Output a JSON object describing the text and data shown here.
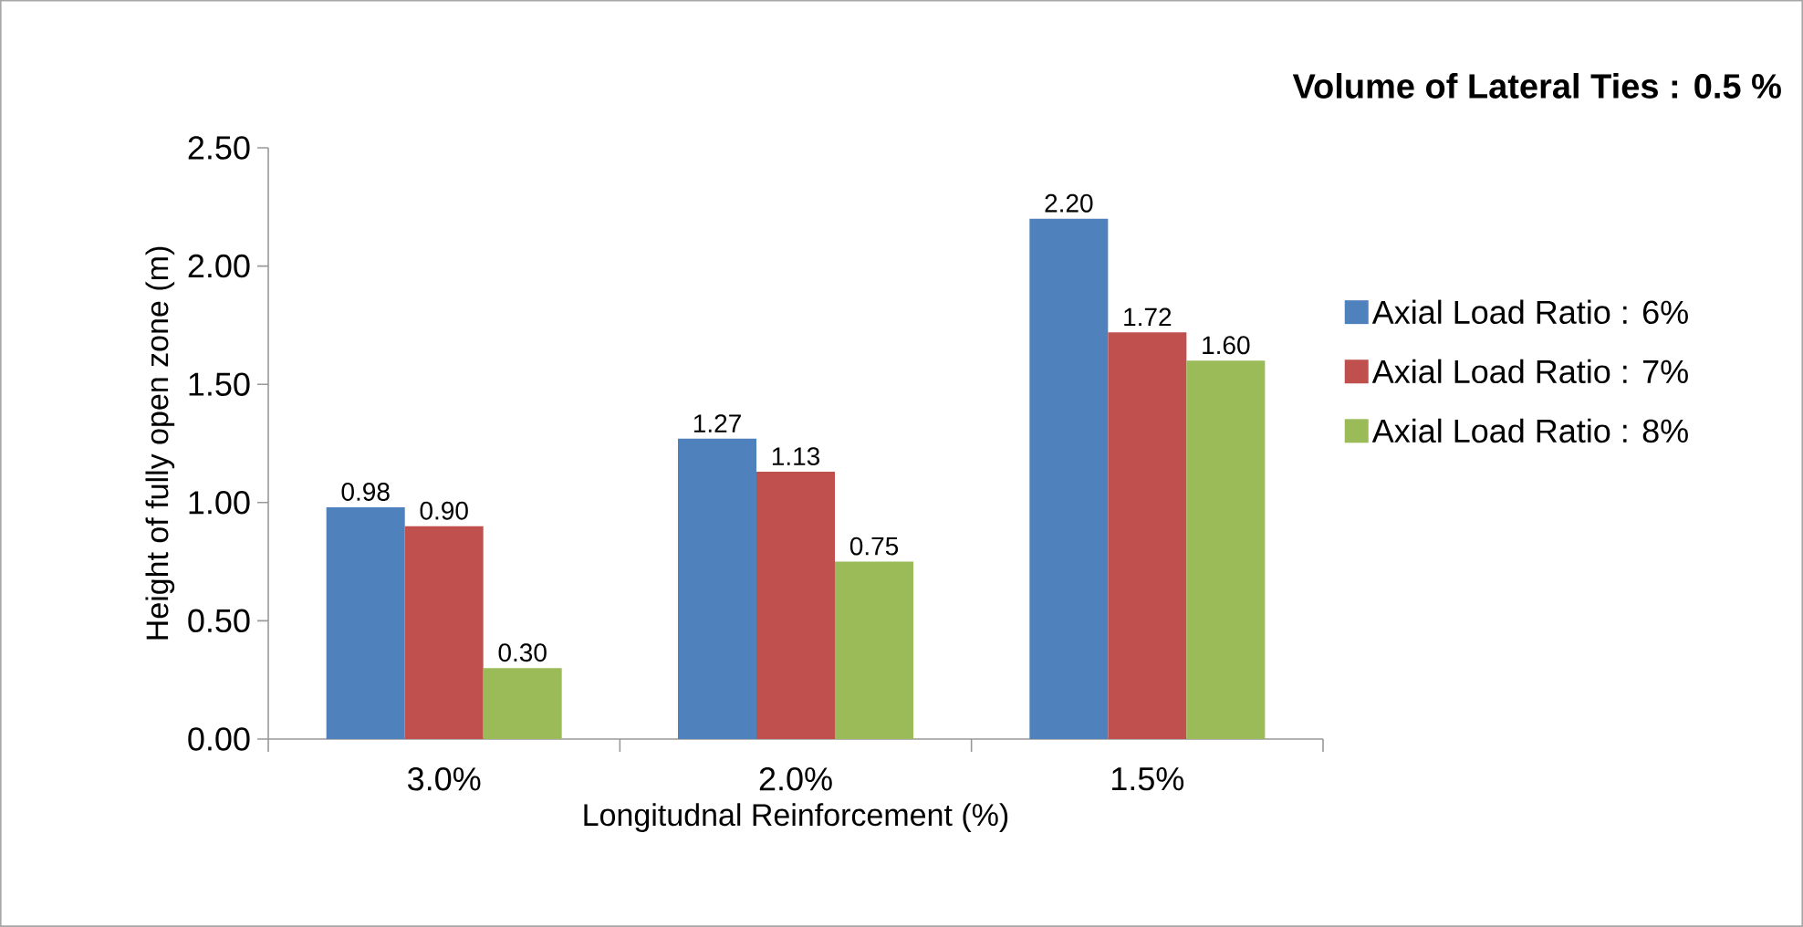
{
  "chart_data": {
    "type": "bar",
    "title": "Volume of Lateral Ties : 0.5 %",
    "xlabel": "Longitudnal Reinforcement (%)",
    "ylabel": "Height of fully open zone (m)",
    "categories": [
      "3.0%",
      "2.0%",
      "1.5%"
    ],
    "series": [
      {
        "name": "Axial Load Ratio : 6%",
        "color": "#4f81bd",
        "values": [
          0.98,
          1.27,
          2.2
        ],
        "value_labels": [
          "0.98",
          "1.27",
          "2.20"
        ]
      },
      {
        "name": "Axial Load Ratio : 7%",
        "color": "#c0504d",
        "values": [
          0.9,
          1.13,
          1.72
        ],
        "value_labels": [
          "0.90",
          "1.13",
          "1.72"
        ]
      },
      {
        "name": "Axial Load Ratio : 8%",
        "color": "#9bbb59",
        "values": [
          0.3,
          0.75,
          1.6
        ],
        "value_labels": [
          "0.30",
          "0.75",
          "1.60"
        ]
      }
    ],
    "ylim": [
      0,
      2.5
    ],
    "yticks": [
      {
        "value": 0,
        "label": "0.00"
      },
      {
        "value": 0.5,
        "label": "0.50"
      },
      {
        "value": 1,
        "label": "1.00"
      },
      {
        "value": 1.5,
        "label": "1.50"
      },
      {
        "value": 2,
        "label": "2.00"
      },
      {
        "value": 2.5,
        "label": "2.50"
      }
    ],
    "grid": false,
    "legend": "right"
  }
}
